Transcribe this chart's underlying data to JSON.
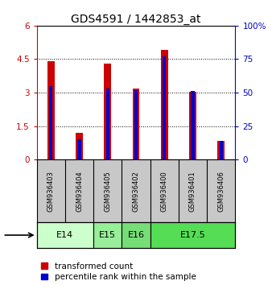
{
  "title": "GDS4591 / 1442853_at",
  "samples": [
    "GSM936403",
    "GSM936404",
    "GSM936405",
    "GSM936402",
    "GSM936400",
    "GSM936401",
    "GSM936406"
  ],
  "transformed_counts": [
    4.4,
    1.2,
    4.3,
    3.2,
    4.9,
    3.05,
    0.85
  ],
  "percentile_ranks": [
    55,
    15,
    53,
    52,
    77,
    51,
    14
  ],
  "age_groups": [
    {
      "label": "E14",
      "span": [
        0,
        2
      ],
      "color": "#ccffcc"
    },
    {
      "label": "E15",
      "span": [
        2,
        3
      ],
      "color": "#99ee99"
    },
    {
      "label": "E16",
      "span": [
        3,
        4
      ],
      "color": "#77dd77"
    },
    {
      "label": "E17.5",
      "span": [
        4,
        7
      ],
      "color": "#55dd55"
    }
  ],
  "ylim_left": [
    0,
    6
  ],
  "ylim_right": [
    0,
    100
  ],
  "yticks_left": [
    0,
    1.5,
    3.0,
    4.5,
    6.0
  ],
  "yticks_right": [
    0,
    25,
    50,
    75,
    100
  ],
  "bar_width": 0.25,
  "red_color": "#cc0000",
  "blue_color": "#0000cc",
  "bg_plot": "#ffffff",
  "bg_sample": "#c8c8c8",
  "title_fontsize": 10,
  "tick_fontsize": 7.5,
  "label_fontsize": 8,
  "legend_fontsize": 7.5
}
